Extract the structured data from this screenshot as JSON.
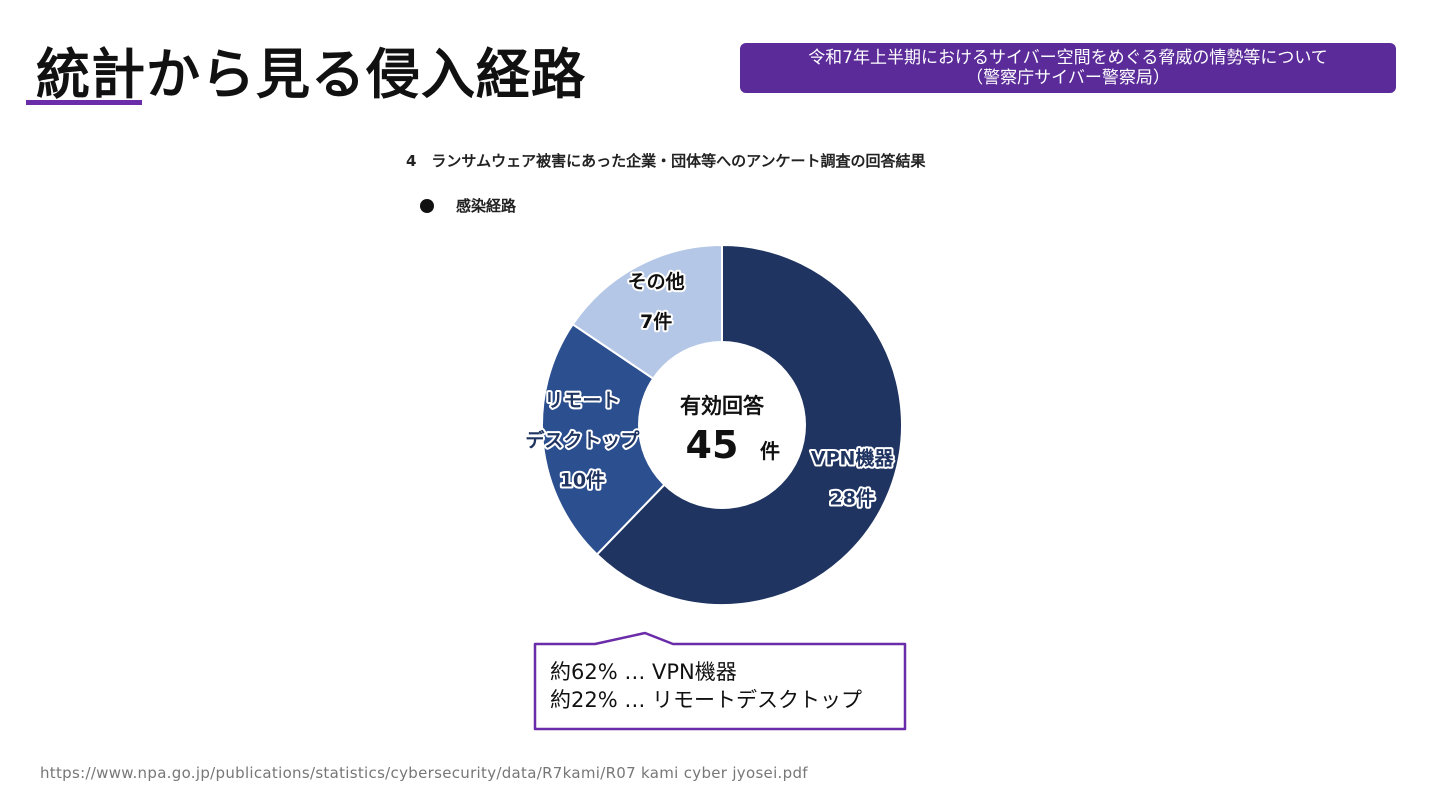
{
  "header": {
    "title": "統計から見る侵入経路",
    "source_line1": "令和7年上半期におけるサイバー空間をめぐる脅威の情勢等について",
    "source_line2": "（警察庁サイバー警察局）",
    "accent_color": "#5b2b9a"
  },
  "section": {
    "heading": "4　ランサムウェア被害にあった企業・団体等へのアンケート調査の回答結果",
    "bullet": "感染経路"
  },
  "chart_data": {
    "type": "pie",
    "donut": true,
    "center_label": "有効回答",
    "total": 45,
    "total_unit": "件",
    "slices": [
      {
        "name": "VPN機器",
        "value": 28,
        "value_label": "28件",
        "color": "#1f3461",
        "text_color": "#1f3461",
        "halo": "#ffffff"
      },
      {
        "name": "リモートデスクトップ",
        "label_lines": [
          "リモート",
          "デスクトップ"
        ],
        "value": 10,
        "value_label": "10件",
        "color": "#2b4f8f",
        "text_color": "#1f3461",
        "halo": "#ffffff"
      },
      {
        "name": "その他",
        "value": 7,
        "value_label": "7件",
        "color": "#b4c7e7",
        "text_color": "#111111",
        "halo": "#ffffff"
      }
    ]
  },
  "callout": {
    "line1": "約62% … VPN機器",
    "line2": "約22% … リモートデスクトップ",
    "border_color": "#6a2ca8"
  },
  "footer": {
    "url": "https://www.npa.go.jp/publications/statistics/cybersecurity/data/R7kami/R07 kami cyber jyosei.pdf"
  }
}
